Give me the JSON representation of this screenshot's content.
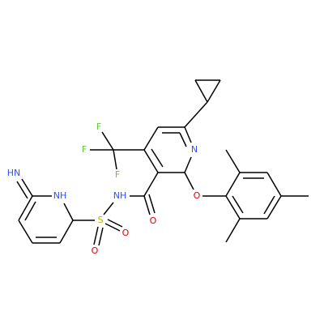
{
  "atoms": {
    "pyridine_n": "N",
    "f1": "F",
    "f2": "F",
    "f3": "F",
    "ether_o": "O",
    "carbonyl_o": "O",
    "amide_nh": "NH",
    "sulfur": "S",
    "sulfonyl_o1": "O",
    "sulfonyl_o2": "O",
    "ring_nh": "NH",
    "imine_hn": "HN"
  }
}
